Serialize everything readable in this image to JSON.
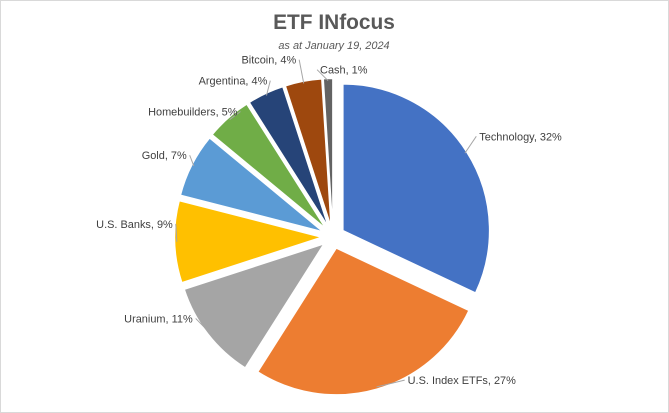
{
  "chart_data": {
    "type": "pie",
    "title": "ETF INfocus",
    "subtitle": "as at January 19, 2024",
    "start_angle_deg": 0,
    "direction": "clockwise",
    "exploded": true,
    "slices": [
      {
        "label": "Technology, 32%",
        "name": "Technology",
        "value": 32,
        "color": "#4472c4"
      },
      {
        "label": "U.S. Index ETFs, 27%",
        "name": "U.S. Index ETFs",
        "value": 27,
        "color": "#ed7d31"
      },
      {
        "label": "Uranium, 11%",
        "name": "Uranium",
        "value": 11,
        "color": "#a5a5a5"
      },
      {
        "label": "U.S. Banks, 9%",
        "name": "U.S. Banks",
        "value": 9,
        "color": "#ffc000"
      },
      {
        "label": "Gold, 7%",
        "name": "Gold",
        "value": 7,
        "color": "#5b9bd5"
      },
      {
        "label": "Homebuilders, 5%",
        "name": "Homebuilders",
        "value": 5,
        "color": "#70ad47"
      },
      {
        "label": "Argentina, 4%",
        "name": "Argentina",
        "value": 4,
        "color": "#264478"
      },
      {
        "label": "Bitcoin, 4%",
        "name": "Bitcoin",
        "value": 4,
        "color": "#9e480e"
      },
      {
        "label": "Cash, 1%",
        "name": "Cash",
        "value": 1,
        "color": "#636363"
      }
    ]
  }
}
